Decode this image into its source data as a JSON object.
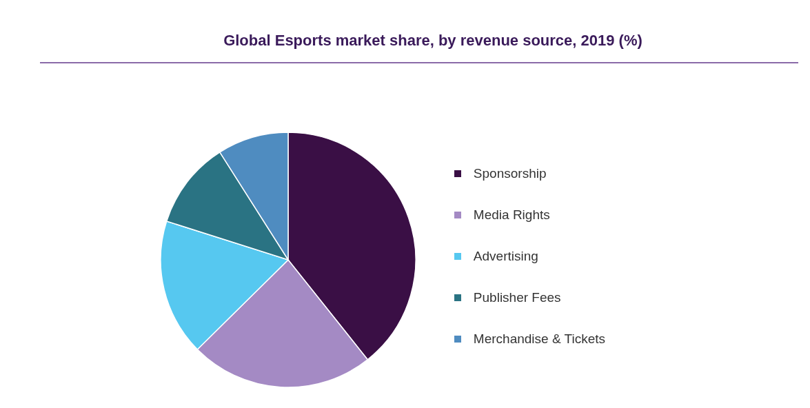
{
  "chart_data": {
    "type": "pie",
    "title": "Global Esports market share, by revenue source, 2019 (%)",
    "categories": [
      "Sponsorship",
      "Media Rights",
      "Advertising",
      "Publisher Fees",
      "Merchandise & Tickets"
    ],
    "values": [
      39.3,
      23.3,
      17.3,
      11.1,
      9.0
    ],
    "colors": [
      "#3a0f45",
      "#a48ac4",
      "#56c8f0",
      "#2a7383",
      "#4f8cc0"
    ],
    "legend": "right"
  }
}
